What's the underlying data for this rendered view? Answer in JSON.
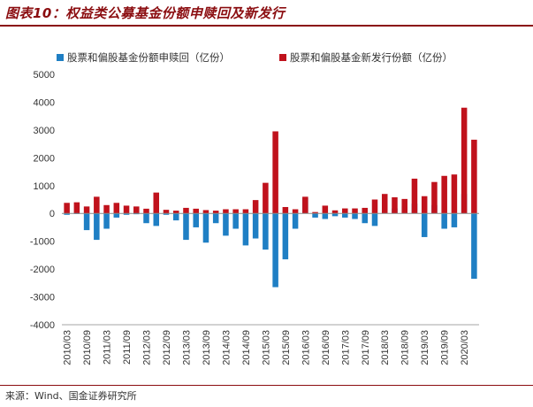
{
  "title": "图表10：权益类公募基金份额申赎回及新发行",
  "source": "来源：Wind、国金证券研究所",
  "colors": {
    "redemption": "#1f7fc4",
    "issuance": "#c0121c",
    "axis": "#888888",
    "text": "#333333"
  },
  "chart_data": {
    "type": "bar",
    "title": "图表10：权益类公募基金份额申赎回及新发行",
    "xlabel": "",
    "ylabel": "",
    "ylim": [
      -4000,
      5000
    ],
    "yticks": [
      -4000,
      -3000,
      -2000,
      -1000,
      0,
      1000,
      2000,
      3000,
      4000,
      5000
    ],
    "legend_position": "top",
    "x_tick_labels": [
      "2010/03",
      "2010/09",
      "2011/03",
      "2011/09",
      "2012/03",
      "2012/09",
      "2013/03",
      "2013/09",
      "2014/03",
      "2014/09",
      "2015/03",
      "2015/09",
      "2016/03",
      "2016/09",
      "2017/03",
      "2017/09",
      "2018/03",
      "2018/09",
      "2019/03",
      "2019/09",
      "2020/03"
    ],
    "categories": [
      "2010/03",
      "2010/06",
      "2010/09",
      "2010/12",
      "2011/03",
      "2011/06",
      "2011/09",
      "2011/12",
      "2012/03",
      "2012/06",
      "2012/09",
      "2012/12",
      "2013/03",
      "2013/06",
      "2013/09",
      "2013/12",
      "2014/03",
      "2014/06",
      "2014/09",
      "2014/12",
      "2015/03",
      "2015/06",
      "2015/09",
      "2015/12",
      "2016/03",
      "2016/06",
      "2016/09",
      "2016/12",
      "2017/03",
      "2017/06",
      "2017/09",
      "2017/12",
      "2018/03",
      "2018/06",
      "2018/09",
      "2018/12",
      "2019/03",
      "2019/06",
      "2019/09",
      "2019/12",
      "2020/03",
      "2020/06"
    ],
    "series": [
      {
        "name": "股票和偏股基金份额申赎回（亿份）",
        "color": "#1f7fc4",
        "values": [
          -50,
          -20,
          -600,
          -950,
          -550,
          -150,
          -50,
          -30,
          -350,
          -450,
          -50,
          -250,
          -950,
          -500,
          -1050,
          -350,
          -800,
          -550,
          -1150,
          -900,
          -1300,
          -2650,
          -1650,
          -550,
          550,
          -150,
          -200,
          -100,
          -150,
          -200,
          -350,
          -450,
          80,
          180,
          250,
          350,
          -850,
          300,
          -550,
          -500,
          700,
          -2350
        ]
      },
      {
        "name": "股票和偏股基金新发行份额（亿份）",
        "color": "#c0121c",
        "values": [
          380,
          400,
          250,
          600,
          300,
          380,
          280,
          250,
          170,
          750,
          130,
          100,
          200,
          170,
          120,
          100,
          150,
          150,
          150,
          480,
          1100,
          2950,
          230,
          150,
          600,
          50,
          280,
          110,
          180,
          180,
          200,
          500,
          700,
          580,
          520,
          1250,
          620,
          1130,
          1350,
          1400,
          3800,
          2650
        ]
      }
    ]
  }
}
